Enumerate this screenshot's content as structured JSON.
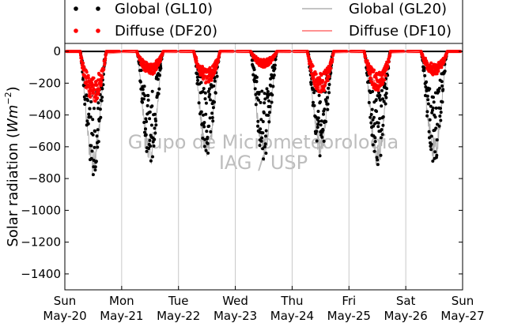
{
  "chart_data": {
    "type": "scatter",
    "ylabel": "Solar radiation",
    "ylabel_unit_base": "Wm",
    "ylabel_unit_exp": "−2",
    "ylim": [
      -1500,
      50
    ],
    "yticks": [
      0,
      -200,
      -400,
      -600,
      -800,
      -1000,
      -1200,
      -1400
    ],
    "xlim_days": [
      0,
      7
    ],
    "xticks": [
      {
        "day": "Sun",
        "date": "May-20"
      },
      {
        "day": "Mon",
        "date": "May-21"
      },
      {
        "day": "Tue",
        "date": "May-22"
      },
      {
        "day": "Wed",
        "date": "May-23"
      },
      {
        "day": "Thu",
        "date": "May-24"
      },
      {
        "day": "Fri",
        "date": "May-25"
      },
      {
        "day": "Sat",
        "date": "May-26"
      },
      {
        "day": "Sun",
        "date": "May-27"
      }
    ],
    "grid": "vertical",
    "legend_placement": "top",
    "legend": [
      {
        "label": "Global (GL10)",
        "style": "dots",
        "color": "#000000"
      },
      {
        "label": "Diffuse (DF20)",
        "style": "dots",
        "color": "#ff0000"
      },
      {
        "label": "Global (GL20)",
        "style": "line",
        "color": "#b0b0b0"
      },
      {
        "label": "Diffuse (DF10)",
        "style": "line",
        "color": "#ff6f6f"
      }
    ],
    "daily_minimum": {
      "dates": [
        "May-20",
        "May-21",
        "May-22",
        "May-23",
        "May-24",
        "May-25",
        "May-26"
      ],
      "global": [
        -780,
        -720,
        -700,
        -710,
        -670,
        -750,
        -720
      ],
      "diffuse": [
        -330,
        -150,
        -210,
        -100,
        -270,
        -250,
        -150
      ]
    },
    "watermark": [
      "Grupo de Micrometeorologia",
      "IAG / USP"
    ]
  }
}
